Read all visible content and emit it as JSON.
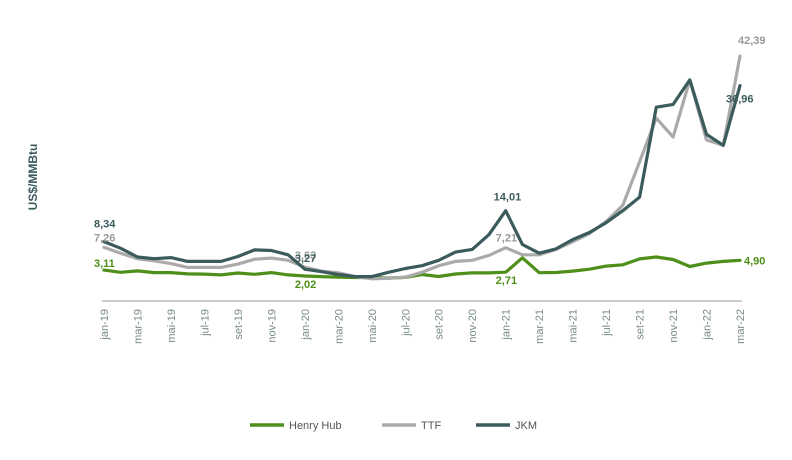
{
  "chart_data": {
    "type": "line",
    "title": "",
    "xlabel": "",
    "ylabel": "US$/MMBtu",
    "ylim": [
      0,
      45
    ],
    "grid": false,
    "legend_position": "bottom-center",
    "x": [
      "jan-19",
      "fev-19",
      "mar-19",
      "abr-19",
      "mai-19",
      "jun-19",
      "jul-19",
      "ago-19",
      "set-19",
      "out-19",
      "nov-19",
      "dez-19",
      "jan-20",
      "fev-20",
      "mar-20",
      "abr-20",
      "mai-20",
      "jun-20",
      "jul-20",
      "ago-20",
      "set-20",
      "out-20",
      "nov-20",
      "dez-20",
      "jan-21",
      "fev-21",
      "mar-21",
      "abr-21",
      "mai-21",
      "jun-21",
      "jul-21",
      "ago-21",
      "set-21",
      "out-21",
      "nov-21",
      "dez-21",
      "jan-22",
      "fev-22",
      "mar-22"
    ],
    "tick_labels": [
      "jan-19",
      "mar-19",
      "mai-19",
      "jul-19",
      "set-19",
      "nov-19",
      "jan-20",
      "mar-20",
      "mai-20",
      "jul-20",
      "set-20",
      "nov-20",
      "jan-21",
      "mar-21",
      "mai-21",
      "jul-21",
      "set-21",
      "nov-21",
      "jan-22",
      "mar-22"
    ],
    "series": [
      {
        "name": "Henry Hub",
        "color": "#4e8f1a",
        "values": [
          3.11,
          2.69,
          2.95,
          2.65,
          2.64,
          2.4,
          2.37,
          2.22,
          2.56,
          2.33,
          2.65,
          2.22,
          2.02,
          1.91,
          1.79,
          1.74,
          1.75,
          1.63,
          1.77,
          2.3,
          1.92,
          2.39,
          2.61,
          2.59,
          2.71,
          5.35,
          2.62,
          2.66,
          2.91,
          3.26,
          3.84,
          4.07,
          5.16,
          5.51,
          5.05,
          3.76,
          4.38,
          4.69,
          4.9
        ],
        "annotations": [
          {
            "index": 0,
            "text": "3,11"
          },
          {
            "index": 12,
            "text": "2,02"
          },
          {
            "index": 24,
            "text": "2,71"
          },
          {
            "index": 38,
            "text": "4,90"
          }
        ]
      },
      {
        "name": "TTF",
        "color": "#aaaaaa",
        "values": [
          7.26,
          6.2,
          5.2,
          4.8,
          4.3,
          3.6,
          3.6,
          3.6,
          4.2,
          5.1,
          5.3,
          4.9,
          3.63,
          2.9,
          2.6,
          1.9,
          1.5,
          1.6,
          1.8,
          2.7,
          3.9,
          4.7,
          4.9,
          5.8,
          7.21,
          5.9,
          5.9,
          6.9,
          8.3,
          9.8,
          12.0,
          15.0,
          23.0,
          31.0,
          27.5,
          38.0,
          27.0,
          26.0,
          42.39
        ],
        "annotations": [
          {
            "index": 0,
            "text": "7,26"
          },
          {
            "index": 12,
            "text": "3,63"
          },
          {
            "index": 24,
            "text": "7,21"
          },
          {
            "index": 38,
            "text": "42,39"
          }
        ]
      },
      {
        "name": "JKM",
        "color": "#3b5b5d",
        "values": [
          8.34,
          7.1,
          5.5,
          5.2,
          5.4,
          4.7,
          4.7,
          4.7,
          5.6,
          6.8,
          6.7,
          5.9,
          3.27,
          2.8,
          2.3,
          1.9,
          1.9,
          2.7,
          3.4,
          3.9,
          4.9,
          6.4,
          6.9,
          9.6,
          14.01,
          7.8,
          6.2,
          7.0,
          8.7,
          10.0,
          11.8,
          14.0,
          16.5,
          33.0,
          33.5,
          38.0,
          28.0,
          26.0,
          36.96
        ],
        "annotations": [
          {
            "index": 0,
            "text": "8,34"
          },
          {
            "index": 12,
            "text": "3,27"
          },
          {
            "index": 24,
            "text": "14,01"
          },
          {
            "index": 38,
            "text": "36,96"
          }
        ]
      }
    ]
  }
}
